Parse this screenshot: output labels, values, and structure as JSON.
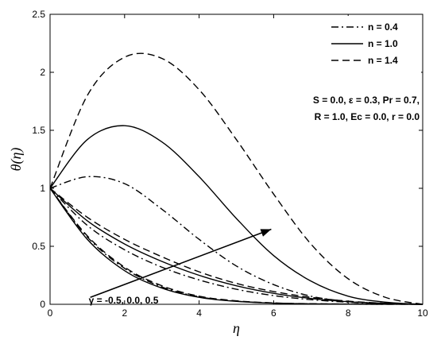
{
  "chart_data": {
    "type": "line",
    "xlabel": "η",
    "ylabel": "θ(η)",
    "xlim": [
      0,
      10
    ],
    "ylim": [
      0,
      2.5
    ],
    "xticks": [
      "0",
      "2",
      "4",
      "6",
      "8",
      "10"
    ],
    "yticks": [
      "0",
      "0.5",
      "1",
      "1.5",
      "2",
      "2.5"
    ],
    "grid": false,
    "legend": {
      "position": "top-right",
      "entries": [
        {
          "label": "n = 0.4",
          "dash": "dash-dot"
        },
        {
          "label": "n = 1.0",
          "dash": "solid"
        },
        {
          "label": "n = 1.4",
          "dash": "dashed"
        }
      ]
    },
    "parameters_text": [
      "S = 0.0, ε = 0.3, Pr = 0.7,",
      "R = 1.0, Ec = 0.0, r = 0.0"
    ],
    "annotation": {
      "text": "γ = -0.5, 0.0, 0.5",
      "arrow_from": [
        4.5,
        0.06
      ],
      "arrow_to": [
        11.2,
        1.1
      ]
    },
    "series": [
      {
        "group": "n = 0.4",
        "dash": "dash-dot",
        "x": [
          0,
          1,
          2,
          3,
          4,
          5,
          6,
          7,
          8,
          9,
          10
        ],
        "y": [
          1.0,
          1.1,
          1.04,
          0.82,
          0.56,
          0.33,
          0.17,
          0.07,
          0.025,
          0.008,
          0.0
        ]
      },
      {
        "group": "n = 1.0",
        "dash": "solid",
        "x": [
          0,
          1,
          2,
          3,
          4,
          5,
          6,
          7,
          8,
          9,
          10
        ],
        "y": [
          1.0,
          1.42,
          1.54,
          1.4,
          1.1,
          0.74,
          0.42,
          0.2,
          0.07,
          0.018,
          0.0
        ]
      },
      {
        "group": "n = 1.4",
        "dash": "dashed",
        "x": [
          0,
          1,
          2,
          3,
          4,
          5,
          6,
          7,
          8,
          9,
          10
        ],
        "y": [
          1.0,
          1.8,
          2.13,
          2.12,
          1.85,
          1.42,
          0.95,
          0.52,
          0.22,
          0.06,
          0.0
        ]
      },
      {
        "group": "n = 0.4",
        "dash": "dash-dot",
        "x": [
          0,
          1,
          2,
          3,
          4,
          5,
          6,
          7,
          8,
          9,
          10
        ],
        "y": [
          1.0,
          0.68,
          0.47,
          0.32,
          0.21,
          0.13,
          0.075,
          0.04,
          0.018,
          0.006,
          0.0
        ]
      },
      {
        "group": "n = 1.0",
        "dash": "solid",
        "x": [
          0,
          1,
          2,
          3,
          4,
          5,
          6,
          7,
          8,
          9,
          10
        ],
        "y": [
          1.0,
          0.72,
          0.52,
          0.37,
          0.25,
          0.16,
          0.095,
          0.05,
          0.022,
          0.007,
          0.0
        ]
      },
      {
        "group": "n = 1.4",
        "dash": "dashed",
        "x": [
          0,
          1,
          2,
          3,
          4,
          5,
          6,
          7,
          8,
          9,
          10
        ],
        "y": [
          1.0,
          0.75,
          0.56,
          0.41,
          0.28,
          0.18,
          0.11,
          0.06,
          0.027,
          0.009,
          0.0
        ]
      },
      {
        "group": "n = 0.4",
        "dash": "dash-dot",
        "x": [
          0,
          1,
          2,
          3,
          4,
          5,
          6,
          7,
          8,
          9,
          10
        ],
        "y": [
          1.0,
          0.58,
          0.31,
          0.15,
          0.065,
          0.027,
          0.011,
          0.004,
          0.0015,
          0.0005,
          0.0
        ]
      },
      {
        "group": "n = 1.0",
        "dash": "solid",
        "x": [
          0,
          1,
          2,
          3,
          4,
          5,
          6,
          7,
          8,
          9,
          10
        ],
        "y": [
          1.0,
          0.56,
          0.29,
          0.14,
          0.06,
          0.025,
          0.01,
          0.004,
          0.0015,
          0.0005,
          0.0
        ]
      },
      {
        "group": "n = 1.4",
        "dash": "dashed",
        "x": [
          0,
          1,
          2,
          3,
          4,
          5,
          6,
          7,
          8,
          9,
          10
        ],
        "y": [
          1.0,
          0.59,
          0.32,
          0.16,
          0.07,
          0.03,
          0.012,
          0.005,
          0.002,
          0.0006,
          0.0
        ]
      }
    ]
  }
}
